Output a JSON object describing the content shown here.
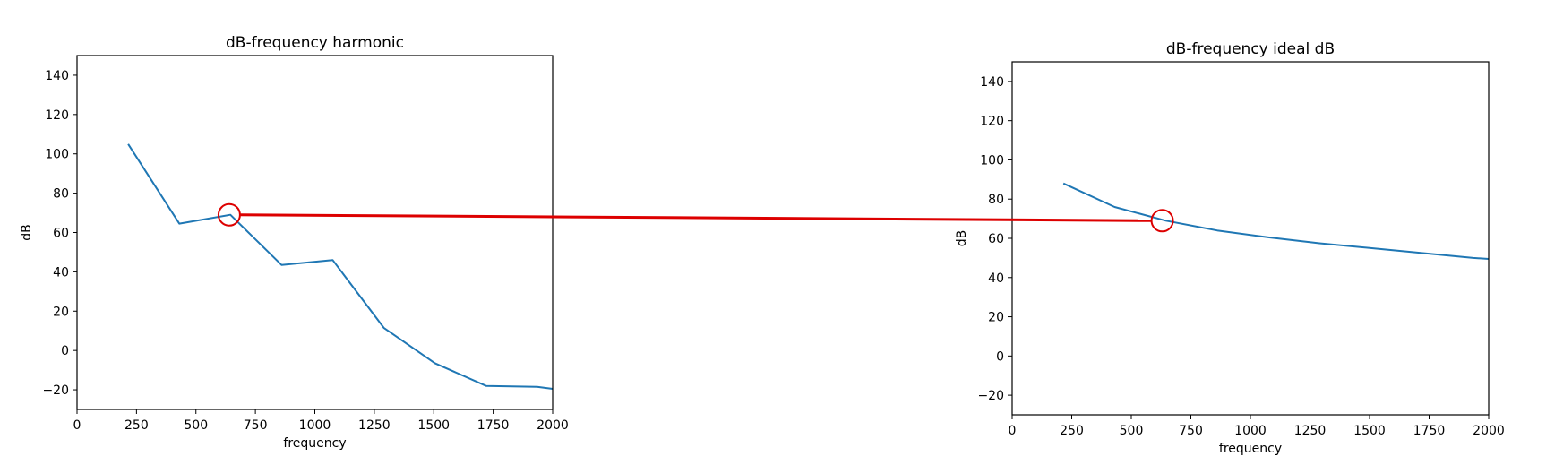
{
  "colors": {
    "series": "#1f77b4",
    "annotation": "#dd0000",
    "axes": "#000000",
    "background": "#ffffff"
  },
  "chart_data": [
    {
      "type": "line",
      "title": "dB-frequency harmonic",
      "xlabel": "frequency",
      "ylabel": "dB",
      "xlim": [
        0,
        2000
      ],
      "ylim": [
        -30,
        150
      ],
      "xticks": [
        0,
        250,
        500,
        750,
        1000,
        1250,
        1500,
        1750,
        2000
      ],
      "yticks": [
        -20,
        0,
        20,
        40,
        60,
        80,
        100,
        120,
        140
      ],
      "grid": false,
      "series": [
        {
          "x": [
            215,
            430,
            645,
            860,
            1075,
            1290,
            1505,
            1720,
            1935,
            2000
          ],
          "y": [
            105,
            64.5,
            69,
            43.5,
            46,
            11.5,
            -6.5,
            -18,
            -18.5,
            -19.5
          ]
        }
      ],
      "annotation_point": {
        "x": 640,
        "y": 69
      }
    },
    {
      "type": "line",
      "title": "dB-frequency ideal dB",
      "xlabel": "frequency",
      "ylabel": "dB",
      "xlim": [
        0,
        2000
      ],
      "ylim": [
        -30,
        150
      ],
      "xticks": [
        0,
        250,
        500,
        750,
        1000,
        1250,
        1500,
        1750,
        2000
      ],
      "yticks": [
        -20,
        0,
        20,
        40,
        60,
        80,
        100,
        120,
        140
      ],
      "grid": false,
      "series": [
        {
          "x": [
            215,
            430,
            645,
            860,
            1075,
            1290,
            1505,
            1720,
            1935,
            2000
          ],
          "y": [
            88,
            76,
            69,
            64,
            60.5,
            57.5,
            55,
            52.5,
            50,
            49.5
          ]
        }
      ],
      "annotation_point": {
        "x": 630,
        "y": 69
      }
    }
  ]
}
